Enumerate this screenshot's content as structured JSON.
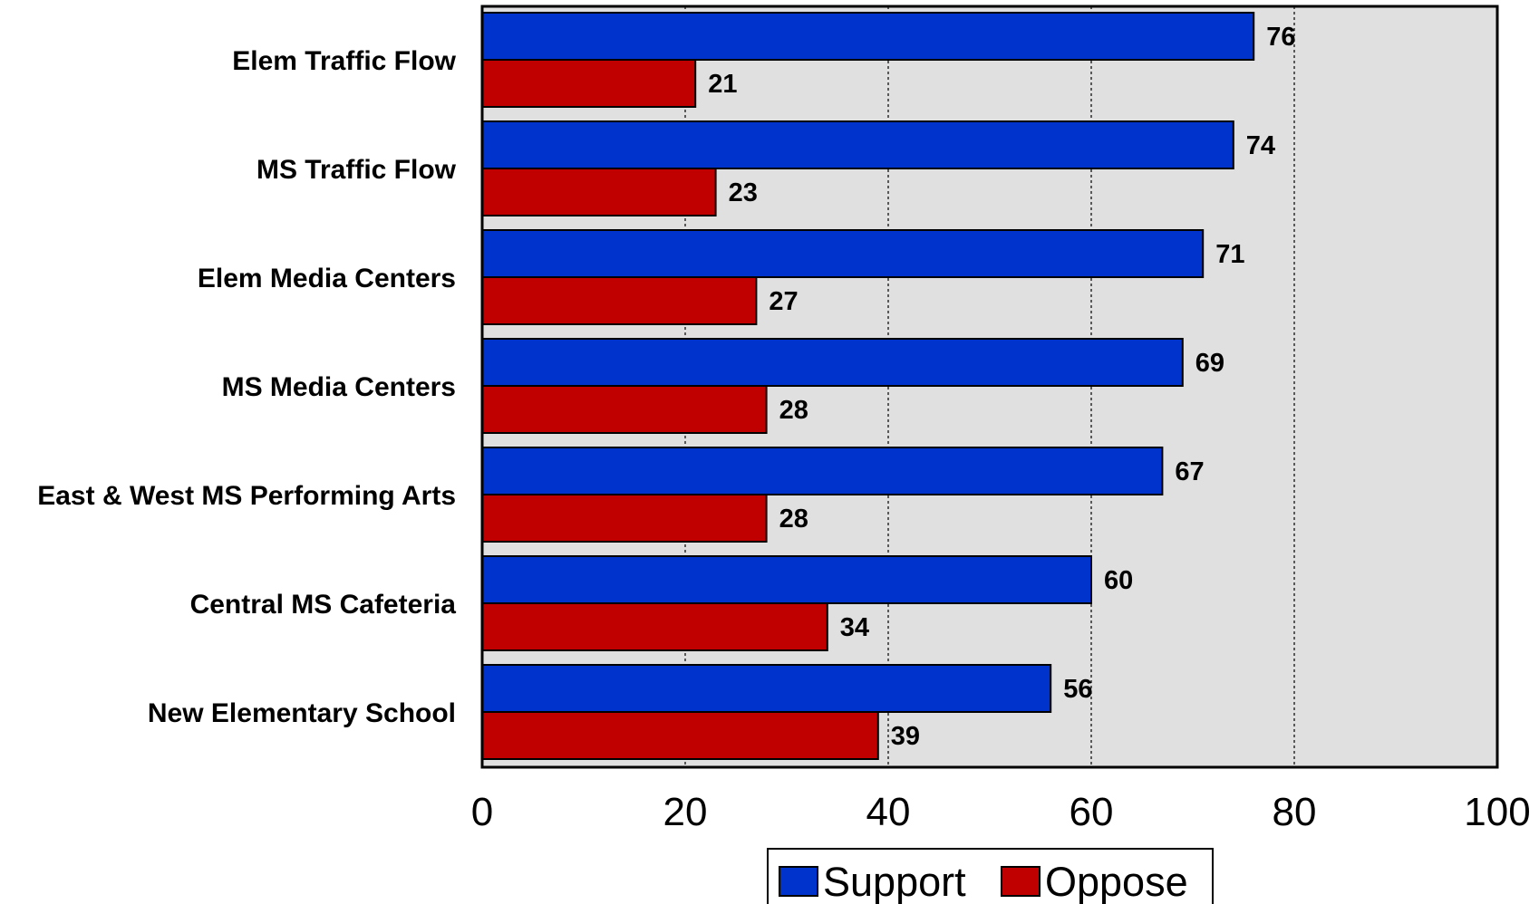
{
  "chart_data": {
    "type": "bar",
    "orientation": "horizontal",
    "categories": [
      "Elem Traffic Flow",
      "MS Traffic Flow",
      "Elem Media Centers",
      "MS Media Centers",
      "East & West MS Performing Arts",
      "Central MS Cafeteria",
      "New Elementary School"
    ],
    "series": [
      {
        "name": "Support",
        "color": "#0033cc",
        "values": [
          76,
          74,
          71,
          69,
          67,
          60,
          56
        ]
      },
      {
        "name": "Oppose",
        "color": "#c00000",
        "values": [
          21,
          23,
          27,
          28,
          28,
          34,
          39
        ]
      }
    ],
    "xlim": [
      0,
      100
    ],
    "xticks": [
      0,
      20,
      40,
      60,
      80,
      100
    ],
    "grid": "vertical dashed",
    "plot_background": "#e0e0e0",
    "legend_position": "bottom-center",
    "data_labels": true
  }
}
